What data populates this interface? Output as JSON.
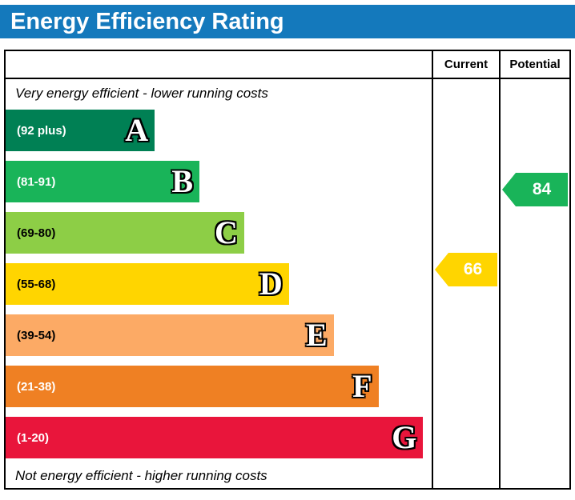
{
  "title": "Energy Efficiency Rating",
  "theme": {
    "header_bg": "#1479bc",
    "header_text": "#ffffff",
    "border": "#000000"
  },
  "columns": {
    "current": "Current",
    "potential": "Potential"
  },
  "notes": {
    "top": "Very energy efficient - lower running costs",
    "bottom": "Not energy efficient - higher running costs"
  },
  "chart_data": {
    "type": "epc_energy_rating_bands",
    "title": "Energy Efficiency Rating",
    "bands": [
      {
        "letter": "A",
        "range": "(92 plus)",
        "min": 92,
        "max": 100,
        "color": "#008054",
        "label_color": "#ffffff",
        "width_pct": 35
      },
      {
        "letter": "B",
        "range": "(81-91)",
        "min": 81,
        "max": 91,
        "color": "#19b459",
        "label_color": "#ffffff",
        "width_pct": 45.5
      },
      {
        "letter": "C",
        "range": "(69-80)",
        "min": 69,
        "max": 80,
        "color": "#8dce46",
        "label_color": "#000000",
        "width_pct": 56
      },
      {
        "letter": "D",
        "range": "(55-68)",
        "min": 55,
        "max": 68,
        "color": "#ffd500",
        "label_color": "#000000",
        "width_pct": 66.5
      },
      {
        "letter": "E",
        "range": "(39-54)",
        "min": 39,
        "max": 54,
        "color": "#fcaa65",
        "label_color": "#000000",
        "width_pct": 77
      },
      {
        "letter": "F",
        "range": "(21-38)",
        "min": 21,
        "max": 38,
        "color": "#ef8023",
        "label_color": "#ffffff",
        "width_pct": 87.5
      },
      {
        "letter": "G",
        "range": "(1-20)",
        "min": 1,
        "max": 20,
        "color": "#e9153b",
        "label_color": "#ffffff",
        "width_pct": 98
      }
    ],
    "markers": {
      "current": {
        "value": 66,
        "band": "D",
        "color": "#ffd500"
      },
      "potential": {
        "value": 84,
        "band": "B",
        "color": "#19b459"
      }
    }
  }
}
